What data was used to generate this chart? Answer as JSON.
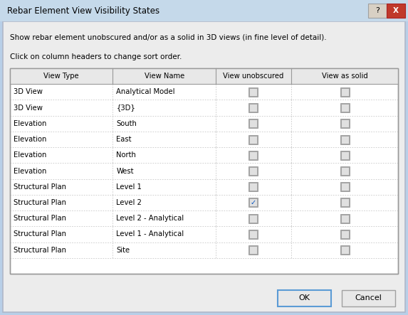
{
  "title": "Rebar Element View Visibility States",
  "description": "Show rebar element unobscured and/or as a solid in 3D views (in fine level of detail).",
  "subtitle": "Click on column headers to change sort order.",
  "col_headers": [
    "View Type",
    "View Name",
    "View unobscured",
    "View as solid"
  ],
  "rows": [
    [
      "3D View",
      "Analytical Model",
      false,
      false
    ],
    [
      "3D View",
      "{3D}",
      false,
      false
    ],
    [
      "Elevation",
      "South",
      false,
      false
    ],
    [
      "Elevation",
      "East",
      false,
      false
    ],
    [
      "Elevation",
      "North",
      false,
      false
    ],
    [
      "Elevation",
      "West",
      false,
      false
    ],
    [
      "Structural Plan",
      "Level 1",
      false,
      false
    ],
    [
      "Structural Plan",
      "Level 2",
      true,
      false
    ],
    [
      "Structural Plan",
      "Level 2 - Analytical",
      false,
      false
    ],
    [
      "Structural Plan",
      "Level 1 - Analytical",
      false,
      false
    ],
    [
      "Structural Plan",
      "Site",
      false,
      false
    ]
  ],
  "outer_bg": "#b8cfe8",
  "dialog_bg": "#ececec",
  "title_bar_bg": "#c5d9ea",
  "title_bar_text_color": "#000000",
  "qbtn_bg": "#d8d0c4",
  "xbtn_bg": "#c0392b",
  "table_bg": "#ffffff",
  "header_row_bg": "#e8e8e8",
  "text_color": "#000000",
  "ok_label": "OK",
  "cancel_label": "Cancel",
  "ok_border": "#5b9bd5",
  "cancel_border": "#a0a0a0",
  "row_sep_color": "#c8c8c8",
  "col_sep_color": "#c8c8c8",
  "table_border_color": "#999999",
  "header_border_color": "#999999",
  "checkbox_bg": "#e0e0e0",
  "checkbox_border": "#808080",
  "check_color": "#0050c0",
  "font_size_title": 8.5,
  "font_size_body": 7.5,
  "font_size_table": 7.2
}
